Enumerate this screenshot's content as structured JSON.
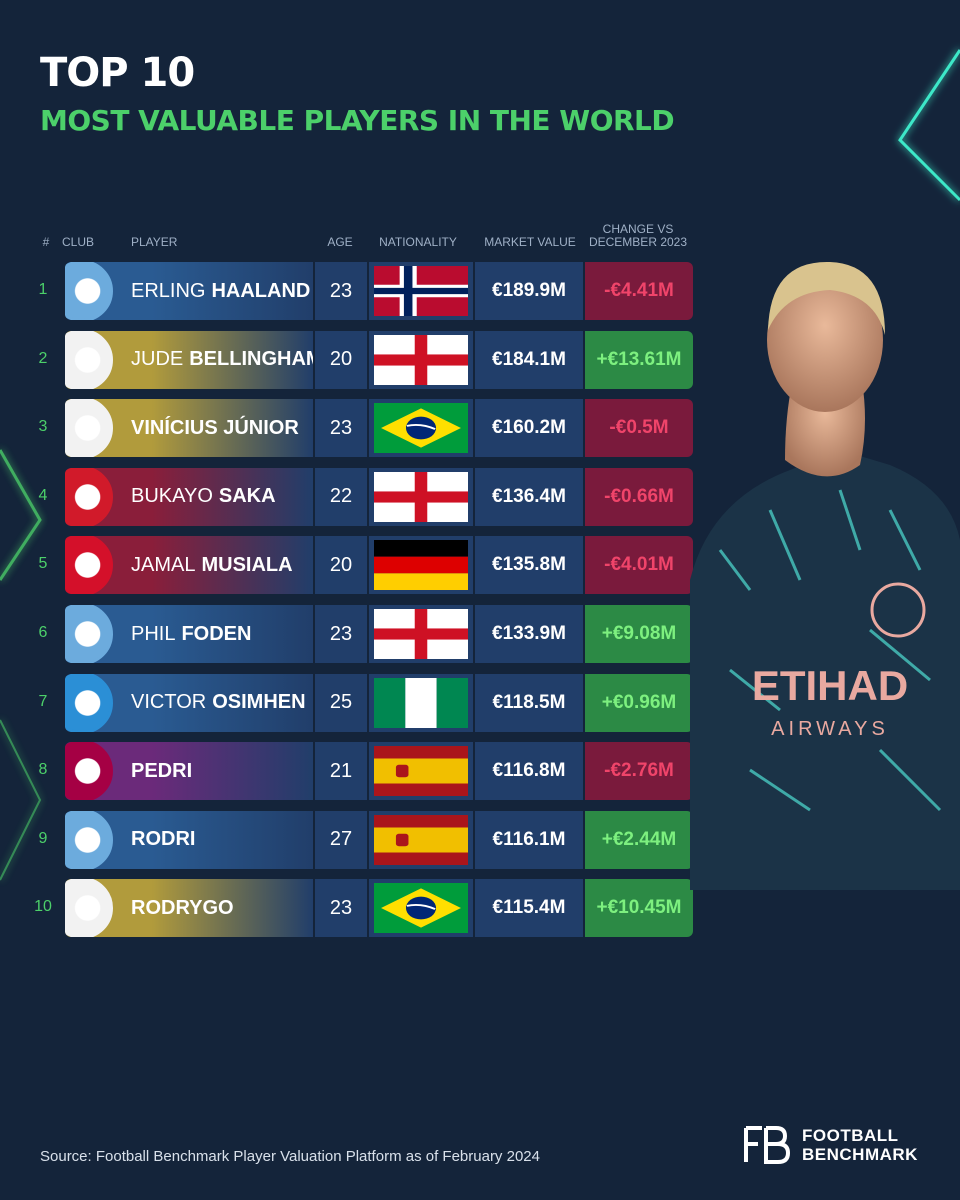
{
  "header": {
    "title": "TOP 10",
    "subtitle": "MOST VALUABLE PLAYERS IN THE WORLD"
  },
  "columns": {
    "rank": "#",
    "club": "CLUB",
    "player": "PLAYER",
    "age": "AGE",
    "nationality": "NATIONALITY",
    "market_value": "MARKET VALUE",
    "change_line1": "CHANGE VS",
    "change_line2": "DECEMBER 2023"
  },
  "rows": [
    {
      "rank": "1",
      "club": "man-city",
      "first": "ERLING",
      "last": "HAALAND",
      "age": "23",
      "flag": "norway",
      "value": "€189.9M",
      "change": "-€4.41M",
      "trend": "neg"
    },
    {
      "rank": "2",
      "club": "real-madrid",
      "first": "JUDE",
      "last": "BELLINGHAM",
      "age": "20",
      "flag": "england",
      "value": "€184.1M",
      "change": "+€13.61M",
      "trend": "pos"
    },
    {
      "rank": "3",
      "club": "real-madrid",
      "first": "",
      "last": "VINÍCIUS JÚNIOR",
      "age": "23",
      "flag": "brazil",
      "value": "€160.2M",
      "change": "-€0.5M",
      "trend": "neg"
    },
    {
      "rank": "4",
      "club": "arsenal",
      "first": "BUKAYO",
      "last": "SAKA",
      "age": "22",
      "flag": "england",
      "value": "€136.4M",
      "change": "-€0.66M",
      "trend": "neg"
    },
    {
      "rank": "5",
      "club": "bayern",
      "first": "JAMAL",
      "last": "MUSIALA",
      "age": "20",
      "flag": "germany",
      "value": "€135.8M",
      "change": "-€4.01M",
      "trend": "neg"
    },
    {
      "rank": "6",
      "club": "man-city",
      "first": "PHIL",
      "last": "FODEN",
      "age": "23",
      "flag": "england",
      "value": "€133.9M",
      "change": "+€9.08M",
      "trend": "pos"
    },
    {
      "rank": "7",
      "club": "napoli",
      "first": "VICTOR",
      "last": "OSIMHEN",
      "age": "25",
      "flag": "nigeria",
      "value": "€118.5M",
      "change": "+€0.96M",
      "trend": "pos"
    },
    {
      "rank": "8",
      "club": "barcelona",
      "first": "",
      "last": "PEDRI",
      "age": "21",
      "flag": "spain",
      "value": "€116.8M",
      "change": "-€2.76M",
      "trend": "neg"
    },
    {
      "rank": "9",
      "club": "man-city",
      "first": "",
      "last": "RODRI",
      "age": "27",
      "flag": "spain",
      "value": "€116.1M",
      "change": "+€2.44M",
      "trend": "pos"
    },
    {
      "rank": "10",
      "club": "real-madrid",
      "first": "",
      "last": "RODRYGO",
      "age": "23",
      "flag": "brazil",
      "value": "€115.4M",
      "change": "+€10.45M",
      "trend": "pos"
    }
  ],
  "club_styles": {
    "man-city": {
      "logo": "#6cabdd",
      "grad": "#2a5b92"
    },
    "real-madrid": {
      "logo": "#f2f2f2",
      "grad": "#b19b3c"
    },
    "arsenal": {
      "logo": "#d11a2a",
      "grad": "#8a1e3a"
    },
    "bayern": {
      "logo": "#d4102a",
      "grad": "#8a1e3a"
    },
    "napoli": {
      "logo": "#2b8fd6",
      "grad": "#2a5b92"
    },
    "barcelona": {
      "logo": "#a50044",
      "grad": "#6b2a7a"
    }
  },
  "colors": {
    "background": "#14243a",
    "accent_green": "#4cd06a",
    "negative": "#f0446a",
    "positive": "#7df07f"
  },
  "footer": {
    "source": "Source: Football Benchmark Player Valuation Platform as of February 2024",
    "brand_line1": "FOOTBALL",
    "brand_line2": "BENCHMARK"
  }
}
